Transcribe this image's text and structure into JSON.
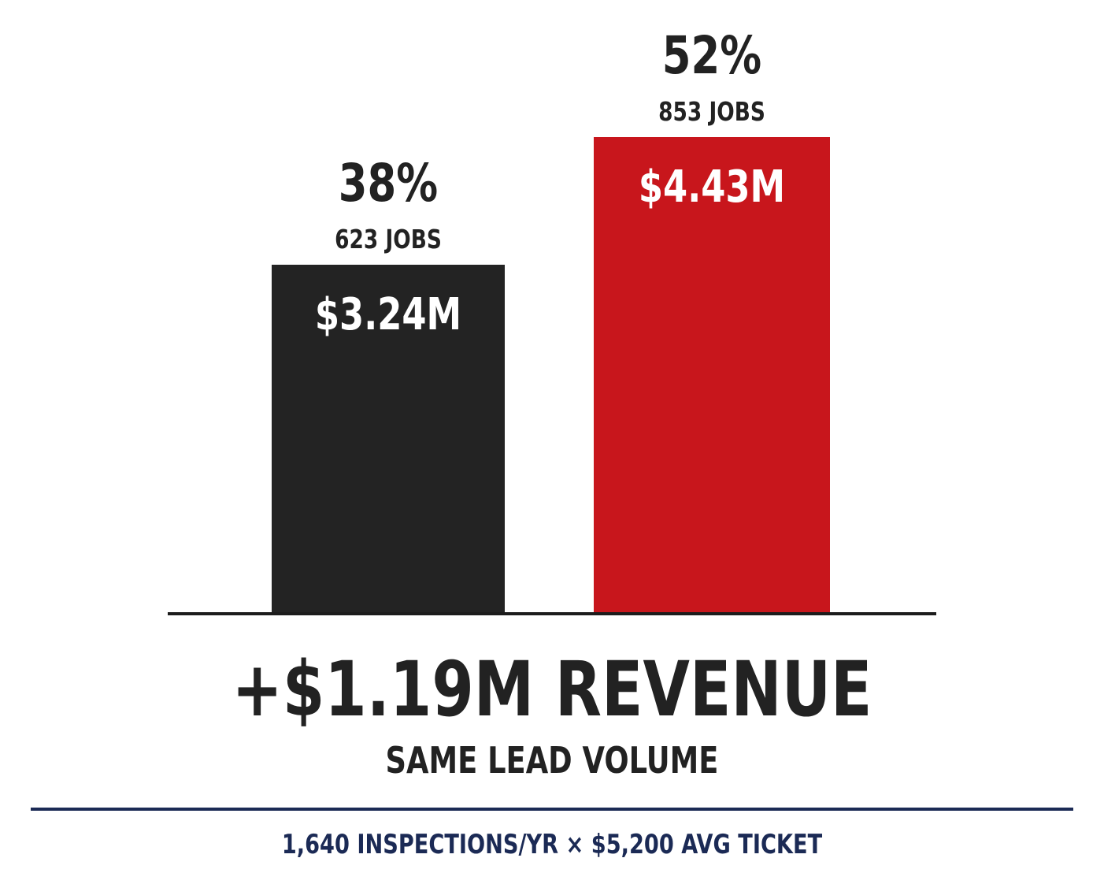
{
  "chart_data": {
    "type": "bar",
    "categories": [
      "",
      ""
    ],
    "values": [
      3.24,
      4.43
    ],
    "value_labels": [
      "$3.24M",
      "$4.43M"
    ],
    "percent_labels": [
      "38%",
      "52%"
    ],
    "jobs_labels": [
      "623 JOBS",
      "853 JOBS"
    ],
    "percents": [
      38,
      52
    ],
    "jobs": [
      623,
      853
    ],
    "colors": [
      "#232323",
      "#c8161c"
    ],
    "ylim": [
      0,
      4.43
    ],
    "grid": false,
    "legend": "none"
  },
  "headline": "+$1.19M REVENUE",
  "subheadline": "SAME LEAD VOLUME",
  "footnote": "1,640 INSPECTIONS/YR × $5,200 AVG TICKET",
  "colors": {
    "text": "#222222",
    "accent": "#c8161c",
    "navy": "#1b2a55"
  }
}
